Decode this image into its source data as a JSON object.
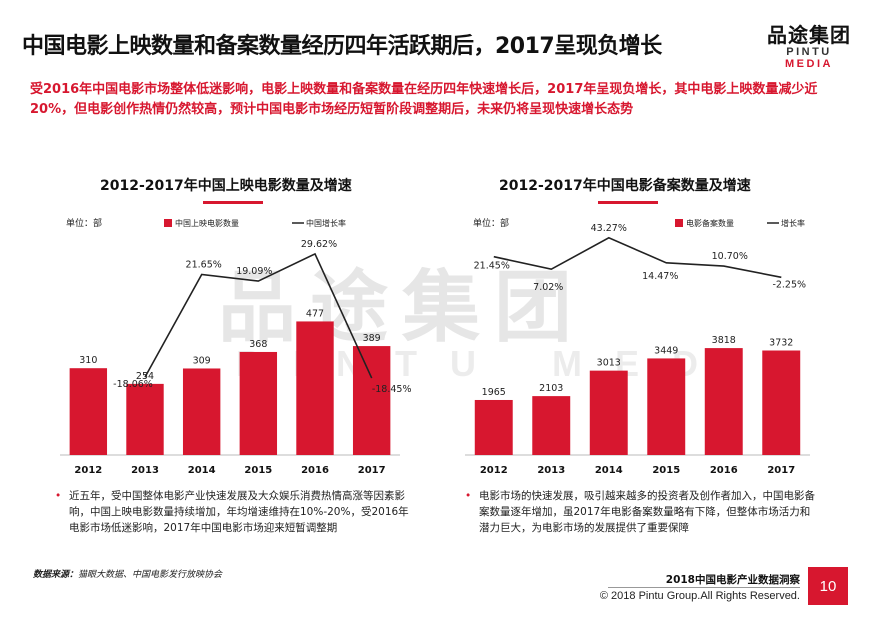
{
  "header": {
    "title": "中国电影上映数量和备案数量经历四年活跃期后，2017呈现负增长",
    "logo_cn": "品途集团",
    "logo_en_a": "PINTU ",
    "logo_en_b": "MEDIA"
  },
  "summary": "受2016年中国电影市场整体低迷影响，电影上映数量和备案数量在经历四年快速增长后，2017年呈现负增长，其中电影上映数量减少近20%，但电影创作热情仍然较高，预计中国电影市场经历短暂阶段调整期后，未来仍将呈现快速增长态势",
  "watermark": {
    "cn": "品途集团",
    "en": "PINTU MEDIA"
  },
  "colors": {
    "accent": "#d7172f",
    "line": "#222222"
  },
  "chart_data": [
    {
      "type": "bar",
      "title": "2012-2017年中国上映电影数量及增速",
      "unit": "单位：部",
      "categories": [
        "2012",
        "2013",
        "2014",
        "2015",
        "2016",
        "2017"
      ],
      "series": [
        {
          "name": "中国上映电影数量",
          "type": "bar",
          "values": [
            310,
            254,
            309,
            368,
            477,
            389
          ],
          "labels": [
            "310",
            "254",
            "309",
            "368",
            "477",
            "389"
          ]
        },
        {
          "name": "中国增长率",
          "type": "line",
          "values": [
            null,
            -18.06,
            21.65,
            19.09,
            29.62,
            -18.45
          ],
          "labels": [
            "",
            "-18.06%",
            "21.65%",
            "19.09%",
            "29.62%",
            "-18.45%"
          ]
        }
      ],
      "bar_max": 600,
      "line_range": [
        -30,
        35
      ],
      "line_points_offset": [
        null,
        [
          0,
          0
        ],
        [
          0,
          0
        ],
        [
          0,
          0
        ],
        [
          0,
          0
        ],
        [
          0,
          0
        ]
      ]
    },
    {
      "type": "bar",
      "title": "2012-2017年中国电影备案数量及增速",
      "unit": "单位：部",
      "categories": [
        "2012",
        "2013",
        "2014",
        "2015",
        "2016",
        "2017"
      ],
      "series": [
        {
          "name": "电影备案数量",
          "type": "bar",
          "values": [
            1965,
            2103,
            3013,
            3449,
            3818,
            3732
          ],
          "labels": [
            "1965",
            "2103",
            "3013",
            "3449",
            "3818",
            "3732"
          ]
        },
        {
          "name": "增长率",
          "type": "line",
          "values": [
            21.45,
            7.02,
            43.27,
            14.47,
            10.7,
            -2.25
          ],
          "labels": [
            "21.45%",
            "7.02%",
            "43.27%",
            "14.47%",
            "10.70%",
            "-2.25%"
          ]
        }
      ],
      "bar_max": 4500,
      "line_range": [
        -100,
        50
      ]
    }
  ],
  "bullets": {
    "left": "近五年，受中国整体电影产业快速发展及大众娱乐消费热情高涨等因素影响，中国上映电影数量持续增加，年均增速维持在10%-20%，受2016年电影市场低迷影响，2017年中国电影市场迎来短暂调整期",
    "right": "电影市场的快速发展，吸引越来越多的投资者及创作者加入，中国电影备案数量逐年增加，虽2017年电影备案数量略有下降，但整体市场活力和潜力巨大，为电影市场的发展提供了重要保障"
  },
  "footer": {
    "source_label": "数据来源：",
    "source_text": "猫眼大数据、中国电影发行放映协会",
    "report": "2018中国电影产业数据洞察",
    "copyright": "© 2018 Pintu Group.All Rights Reserved.",
    "page": "10"
  }
}
